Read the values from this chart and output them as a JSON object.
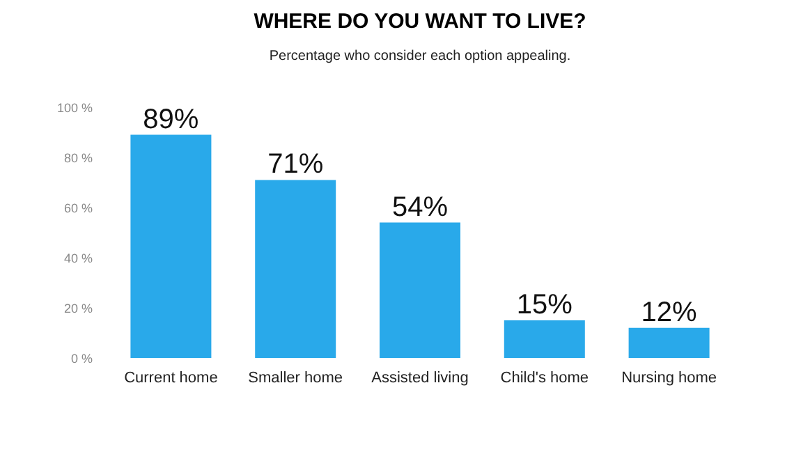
{
  "chart_data": {
    "type": "bar",
    "title": "WHERE DO YOU WANT TO LIVE?",
    "subtitle": "Percentage who consider each option appealing.",
    "categories": [
      "Current home",
      "Smaller home",
      "Assisted living",
      "Child's home",
      "Nursing home"
    ],
    "values": [
      89,
      71,
      54,
      15,
      12
    ],
    "value_labels": [
      "89%",
      "71%",
      "54%",
      "15%",
      "12%"
    ],
    "color": "#29a9ea",
    "ylim": [
      0,
      100
    ],
    "yticks": [
      {
        "value": 0,
        "label": "0 %"
      },
      {
        "value": 20,
        "label": "20 %"
      },
      {
        "value": 40,
        "label": "40 %"
      },
      {
        "value": 60,
        "label": "60 %"
      },
      {
        "value": 80,
        "label": "80 %"
      },
      {
        "value": 100,
        "label": "100 %"
      }
    ],
    "grid": false
  }
}
